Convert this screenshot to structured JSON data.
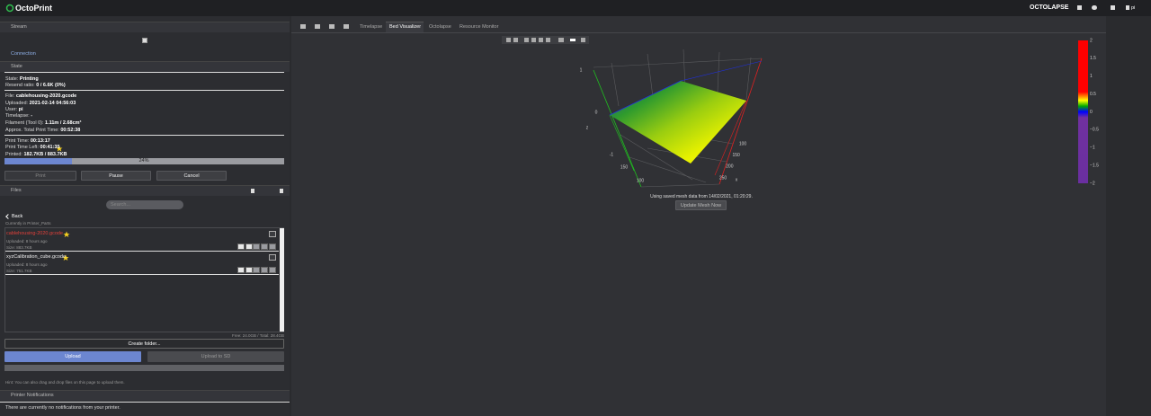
{
  "navbar": {
    "brand": "OctoPrint",
    "plugin": "OCTOLAPSE",
    "user": "pi"
  },
  "sidebar": {
    "stream": {
      "title": "Stream"
    },
    "connection": {
      "title": "Connection"
    },
    "state": {
      "title": "State",
      "lines": [
        {
          "label": "State:",
          "value": "Printing"
        },
        {
          "label": "Resend ratio:",
          "value": "0 / 6.6K (0%)"
        },
        {
          "label": "File:",
          "value": "cablehousing-2020.gcode"
        },
        {
          "label": "Uploaded:",
          "value": "2021-02-14 04:56:03"
        },
        {
          "label": "User:",
          "value": "pi"
        },
        {
          "label": "Timelapse:",
          "value": "-"
        },
        {
          "label": "Filament (Tool 0):",
          "value": "1.11m / 2.68cm³"
        },
        {
          "label": "Approx. Total Print Time:",
          "value": "00:52:38"
        },
        {
          "label": "Print Time:",
          "value": "00:13:17"
        },
        {
          "label": "Print Time Left:",
          "value": "00:41:35"
        },
        {
          "label": "Printed:",
          "value": "182.7KB / 883.7KB"
        }
      ],
      "progress": {
        "value": 24,
        "label": "24%"
      },
      "buttons": [
        "Print",
        "Pause",
        "Cancel"
      ]
    },
    "files": {
      "title": "Files",
      "search_placeholder": "Search...",
      "back": "Back",
      "current_folder": "Currently in Printer_Parts",
      "items": [
        {
          "name": "cablehousing-2020.gcode",
          "uploaded": "Uploaded: 8 hours ago",
          "size": "Size: 883.7KB"
        },
        {
          "name": "xyzCalibration_cube.gcode",
          "uploaded": "Uploaded: 8 hours ago",
          "size": "Size: 751.7KB"
        }
      ],
      "storage": "Free: 24.0GB / Total: 28.4GB",
      "create_folder": "Create folder...",
      "upload": "Upload",
      "upload_sd": "Upload to SD",
      "hint": "Hint: You can also drag and drop files on this page to upload them."
    },
    "notifications": {
      "title": "Printer Notifications",
      "message": "There are currently no notifications from your printer."
    }
  },
  "tabs": [
    "Timelapse",
    "Bed Visualizer",
    "Octolapse",
    "Resource Monitor"
  ],
  "bed_visualizer": {
    "z_axis_label": "z",
    "x_axis_label": "x",
    "z_ticks": [
      1,
      0,
      -1
    ],
    "x_ticks": [
      100,
      150,
      200,
      250
    ],
    "y_ticks": [
      150,
      100
    ],
    "colorbar_ticks": [
      2,
      1.5,
      1,
      0.5,
      0,
      {
        "value": -0.5,
        "label": "−0.5"
      },
      {
        "value": -1,
        "label": "−1"
      },
      {
        "value": -1.5,
        "label": "−1.5"
      },
      {
        "value": -2,
        "label": "−2"
      }
    ],
    "mesh_note": "Using saved mesh data from 14/02/2021, 01:20:29.",
    "update_button": "Update Mesh Now"
  }
}
